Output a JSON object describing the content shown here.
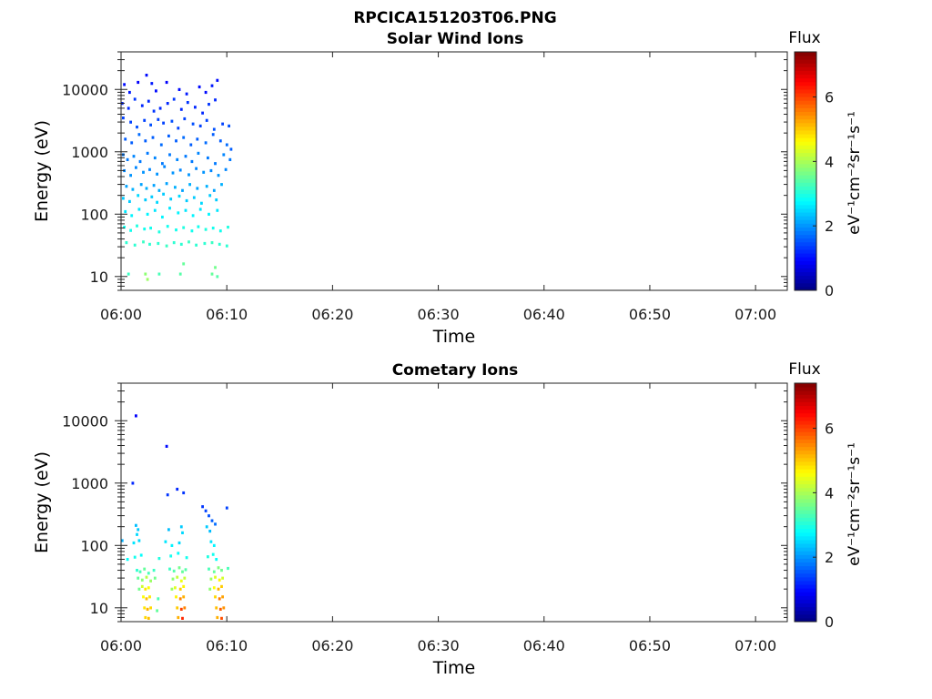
{
  "figure": {
    "title": "RPCICA151203T06.PNG"
  },
  "chart_data": [
    {
      "type": "heatmap",
      "title": "Solar Wind Ions",
      "xlabel": "Time",
      "ylabel": "Energy (eV)",
      "y_scale": "log",
      "x_ticks": [
        "06:00",
        "06:10",
        "06:20",
        "06:30",
        "06:40",
        "06:50",
        "07:00"
      ],
      "x_range_minutes": [
        0,
        63
      ],
      "y_ticks": [
        "10",
        "100",
        "1000",
        "10000"
      ],
      "y_range": [
        6,
        40000
      ],
      "colorbar": {
        "label": "Flux",
        "unit": "eV⁻¹cm⁻²sr⁻¹s⁻¹",
        "ticks": [
          "0",
          "2",
          "4",
          "6"
        ],
        "range": [
          0,
          7.4
        ],
        "colormap": "jet"
      },
      "cells": [
        [
          0.3,
          12000,
          1.0
        ],
        [
          0.8,
          9000,
          1.1
        ],
        [
          1.6,
          13000,
          0.9
        ],
        [
          2.4,
          17000,
          1.0
        ],
        [
          2.9,
          12500,
          1.1
        ],
        [
          3.3,
          9500,
          1.0
        ],
        [
          4.3,
          13000,
          0.9
        ],
        [
          5.5,
          10000,
          1.0
        ],
        [
          6.2,
          8500,
          1.1
        ],
        [
          7.4,
          11000,
          1.0
        ],
        [
          8.0,
          9000,
          1.0
        ],
        [
          8.6,
          11500,
          1.1
        ],
        [
          9.1,
          14000,
          1.0
        ],
        [
          0.1,
          6000,
          1.2
        ],
        [
          0.7,
          5000,
          1.2
        ],
        [
          1.3,
          7000,
          1.3
        ],
        [
          2.0,
          5500,
          1.2
        ],
        [
          2.6,
          6500,
          1.2
        ],
        [
          3.1,
          4500,
          1.3
        ],
        [
          3.7,
          5000,
          1.2
        ],
        [
          4.4,
          6000,
          1.2
        ],
        [
          5.0,
          7000,
          1.3
        ],
        [
          5.7,
          4800,
          1.2
        ],
        [
          6.3,
          6200,
          1.3
        ],
        [
          7.0,
          5200,
          1.2
        ],
        [
          7.7,
          4200,
          1.2
        ],
        [
          8.3,
          5800,
          1.3
        ],
        [
          8.9,
          6800,
          1.2
        ],
        [
          0.2,
          3500,
          1.4
        ],
        [
          0.9,
          3000,
          1.4
        ],
        [
          1.5,
          2500,
          1.5
        ],
        [
          2.2,
          3200,
          1.4
        ],
        [
          2.8,
          2700,
          1.5
        ],
        [
          3.5,
          3300,
          1.4
        ],
        [
          4.0,
          2900,
          1.4
        ],
        [
          4.8,
          3100,
          1.5
        ],
        [
          5.4,
          2400,
          1.4
        ],
        [
          6.0,
          3400,
          1.4
        ],
        [
          6.8,
          2800,
          1.5
        ],
        [
          7.5,
          2600,
          1.4
        ],
        [
          8.1,
          3200,
          1.4
        ],
        [
          8.8,
          2300,
          1.5
        ],
        [
          9.6,
          2800,
          1.4
        ],
        [
          10.2,
          2600,
          1.5
        ],
        [
          0.4,
          1600,
          1.6
        ],
        [
          1.0,
          1400,
          1.6
        ],
        [
          1.7,
          1900,
          1.7
        ],
        [
          2.3,
          1500,
          1.6
        ],
        [
          3.0,
          1700,
          1.6
        ],
        [
          3.8,
          1300,
          1.7
        ],
        [
          4.5,
          1800,
          1.6
        ],
        [
          5.2,
          1500,
          1.6
        ],
        [
          5.9,
          1700,
          1.7
        ],
        [
          6.6,
          1300,
          1.6
        ],
        [
          7.2,
          1600,
          1.6
        ],
        [
          8.0,
          1400,
          1.7
        ],
        [
          8.7,
          1900,
          1.6
        ],
        [
          9.4,
          1500,
          1.6
        ],
        [
          10.0,
          1300,
          1.7
        ],
        [
          10.4,
          1100,
          1.6
        ],
        [
          0.2,
          900,
          1.8
        ],
        [
          0.6,
          750,
          1.8
        ],
        [
          1.2,
          850,
          1.9
        ],
        [
          1.8,
          700,
          1.8
        ],
        [
          2.5,
          950,
          1.8
        ],
        [
          3.2,
          800,
          1.9
        ],
        [
          3.9,
          650,
          1.8
        ],
        [
          4.6,
          900,
          1.8
        ],
        [
          5.3,
          750,
          1.9
        ],
        [
          6.1,
          850,
          1.8
        ],
        [
          6.7,
          700,
          1.8
        ],
        [
          7.3,
          950,
          1.9
        ],
        [
          8.2,
          800,
          1.8
        ],
        [
          8.9,
          650,
          1.8
        ],
        [
          9.7,
          900,
          1.9
        ],
        [
          10.3,
          750,
          1.8
        ],
        [
          0.3,
          500,
          1.9
        ],
        [
          0.9,
          420,
          2.0
        ],
        [
          1.4,
          560,
          1.9
        ],
        [
          2.1,
          470,
          2.0
        ],
        [
          2.7,
          520,
          1.9
        ],
        [
          3.4,
          440,
          2.0
        ],
        [
          4.1,
          580,
          1.9
        ],
        [
          4.9,
          460,
          2.0
        ],
        [
          5.6,
          510,
          1.9
        ],
        [
          6.4,
          430,
          2.0
        ],
        [
          7.1,
          540,
          1.9
        ],
        [
          7.8,
          470,
          2.0
        ],
        [
          8.5,
          500,
          1.9
        ],
        [
          9.2,
          420,
          2.0
        ],
        [
          9.9,
          520,
          1.9
        ],
        [
          0.5,
          280,
          2.1
        ],
        [
          1.1,
          250,
          2.2
        ],
        [
          1.9,
          300,
          2.1
        ],
        [
          2.4,
          260,
          2.2
        ],
        [
          3.1,
          290,
          2.1
        ],
        [
          3.6,
          240,
          2.2
        ],
        [
          4.3,
          310,
          2.1
        ],
        [
          5.1,
          270,
          2.2
        ],
        [
          5.8,
          240,
          2.1
        ],
        [
          6.5,
          300,
          2.2
        ],
        [
          7.2,
          260,
          2.1
        ],
        [
          8.1,
          280,
          2.2
        ],
        [
          8.8,
          240,
          2.1
        ],
        [
          9.5,
          300,
          2.2
        ],
        [
          0.2,
          180,
          2.4
        ],
        [
          0.8,
          160,
          2.4
        ],
        [
          1.6,
          200,
          2.5
        ],
        [
          2.3,
          170,
          2.4
        ],
        [
          2.9,
          190,
          2.4
        ],
        [
          3.4,
          155,
          2.5
        ],
        [
          4.0,
          210,
          2.4
        ],
        [
          4.7,
          175,
          2.4
        ],
        [
          5.5,
          195,
          2.5
        ],
        [
          6.2,
          165,
          2.4
        ],
        [
          6.9,
          185,
          2.4
        ],
        [
          7.6,
          150,
          2.5
        ],
        [
          8.4,
          200,
          2.4
        ],
        [
          9.0,
          170,
          2.4
        ],
        [
          0.4,
          110,
          2.6
        ],
        [
          1.0,
          95,
          2.7
        ],
        [
          1.7,
          120,
          2.6
        ],
        [
          2.5,
          100,
          2.7
        ],
        [
          3.2,
          115,
          2.6
        ],
        [
          3.9,
          90,
          2.7
        ],
        [
          4.6,
          125,
          2.6
        ],
        [
          5.4,
          105,
          2.7
        ],
        [
          6.1,
          115,
          2.6
        ],
        [
          6.8,
          95,
          2.7
        ],
        [
          7.5,
          120,
          2.6
        ],
        [
          8.3,
          100,
          2.7
        ],
        [
          9.1,
          115,
          2.6
        ],
        [
          0.3,
          62,
          2.9
        ],
        [
          0.9,
          55,
          2.9
        ],
        [
          1.5,
          65,
          3.0
        ],
        [
          2.2,
          58,
          2.9
        ],
        [
          2.8,
          60,
          2.9
        ],
        [
          3.6,
          52,
          3.0
        ],
        [
          4.4,
          64,
          2.9
        ],
        [
          5.2,
          56,
          2.9
        ],
        [
          5.9,
          61,
          3.0
        ],
        [
          6.7,
          54,
          2.9
        ],
        [
          7.3,
          63,
          2.9
        ],
        [
          8.0,
          57,
          3.0
        ],
        [
          8.7,
          60,
          2.9
        ],
        [
          9.4,
          54,
          2.9
        ],
        [
          10.1,
          62,
          3.0
        ],
        [
          0.5,
          35,
          3.1
        ],
        [
          1.3,
          32,
          3.1
        ],
        [
          2.1,
          36,
          3.2
        ],
        [
          2.7,
          33,
          3.1
        ],
        [
          3.5,
          34,
          3.1
        ],
        [
          4.3,
          31,
          3.2
        ],
        [
          5.0,
          35,
          3.1
        ],
        [
          5.7,
          33,
          3.1
        ],
        [
          6.4,
          36,
          3.2
        ],
        [
          7.1,
          32,
          3.1
        ],
        [
          7.9,
          34,
          3.1
        ],
        [
          8.6,
          35,
          3.2
        ],
        [
          9.3,
          33,
          3.1
        ],
        [
          10.0,
          31,
          3.1
        ],
        [
          0.7,
          11,
          3.2
        ],
        [
          2.3,
          11,
          3.8
        ],
        [
          2.5,
          9,
          3.9
        ],
        [
          3.6,
          11,
          3.3
        ],
        [
          5.6,
          11,
          3.4
        ],
        [
          5.9,
          16,
          3.5
        ],
        [
          8.6,
          11,
          3.5
        ],
        [
          8.9,
          14,
          3.6
        ],
        [
          9.1,
          10,
          3.4
        ]
      ]
    },
    {
      "type": "heatmap",
      "title": "Cometary Ions",
      "xlabel": "Time",
      "ylabel": "Energy (eV)",
      "y_scale": "log",
      "x_ticks": [
        "06:00",
        "06:10",
        "06:20",
        "06:30",
        "06:40",
        "06:50",
        "07:00"
      ],
      "x_range_minutes": [
        0,
        63
      ],
      "y_ticks": [
        "10",
        "100",
        "1000",
        "10000"
      ],
      "y_range": [
        6,
        40000
      ],
      "colorbar": {
        "label": "Flux",
        "unit": "eV⁻¹cm⁻²sr⁻¹s⁻¹",
        "ticks": [
          "0",
          "2",
          "4",
          "6"
        ],
        "range": [
          0,
          7.4
        ],
        "colormap": "jet"
      },
      "cells": [
        [
          1.4,
          12000,
          0.9
        ],
        [
          4.3,
          3900,
          1.0
        ],
        [
          1.1,
          1000,
          1.2
        ],
        [
          4.4,
          650,
          1.3
        ],
        [
          5.3,
          800,
          1.2
        ],
        [
          5.9,
          700,
          1.3
        ],
        [
          10.0,
          400,
          1.4
        ],
        [
          7.7,
          420,
          1.3
        ],
        [
          8.0,
          360,
          1.4
        ],
        [
          8.3,
          300,
          1.5
        ],
        [
          8.6,
          250,
          1.6
        ],
        [
          8.9,
          220,
          1.7
        ],
        [
          1.4,
          210,
          2.3
        ],
        [
          1.6,
          180,
          2.4
        ],
        [
          1.5,
          150,
          2.5
        ],
        [
          4.5,
          180,
          2.3
        ],
        [
          5.7,
          200,
          2.4
        ],
        [
          5.8,
          160,
          2.5
        ],
        [
          8.1,
          200,
          2.4
        ],
        [
          8.4,
          170,
          2.3
        ],
        [
          0.1,
          120,
          2.2
        ],
        [
          1.2,
          110,
          2.6
        ],
        [
          1.7,
          120,
          2.5
        ],
        [
          4.2,
          115,
          2.6
        ],
        [
          4.8,
          100,
          2.7
        ],
        [
          5.5,
          110,
          2.5
        ],
        [
          8.5,
          115,
          2.6
        ],
        [
          8.8,
          100,
          2.7
        ],
        [
          0.6,
          60,
          2.8
        ],
        [
          1.3,
          65,
          2.9
        ],
        [
          1.9,
          70,
          2.8
        ],
        [
          3.6,
          62,
          3.0
        ],
        [
          4.7,
          68,
          2.9
        ],
        [
          5.4,
          75,
          2.8
        ],
        [
          6.2,
          64,
          2.9
        ],
        [
          8.2,
          66,
          3.0
        ],
        [
          8.7,
          72,
          2.9
        ],
        [
          9.0,
          60,
          2.8
        ],
        [
          1.5,
          40,
          3.1
        ],
        [
          1.8,
          38,
          3.3
        ],
        [
          2.2,
          42,
          3.5
        ],
        [
          2.6,
          36,
          3.3
        ],
        [
          3.1,
          40,
          3.2
        ],
        [
          4.6,
          42,
          3.2
        ],
        [
          5.0,
          39,
          3.4
        ],
        [
          5.5,
          44,
          3.6
        ],
        [
          5.8,
          38,
          3.5
        ],
        [
          6.1,
          41,
          3.4
        ],
        [
          8.3,
          42,
          3.3
        ],
        [
          8.8,
          38,
          3.5
        ],
        [
          9.2,
          44,
          3.7
        ],
        [
          9.5,
          40,
          3.6
        ],
        [
          10.1,
          43,
          3.3
        ],
        [
          1.6,
          30,
          3.5
        ],
        [
          2.0,
          28,
          3.8
        ],
        [
          2.4,
          31,
          4.1
        ],
        [
          2.8,
          27,
          3.9
        ],
        [
          3.2,
          30,
          3.6
        ],
        [
          4.9,
          29,
          3.8
        ],
        [
          5.3,
          31,
          4.2
        ],
        [
          5.7,
          27,
          4.5
        ],
        [
          6.0,
          30,
          4.2
        ],
        [
          8.5,
          29,
          3.9
        ],
        [
          8.9,
          31,
          4.4
        ],
        [
          9.3,
          28,
          4.7
        ],
        [
          9.6,
          30,
          4.3
        ],
        [
          2.0,
          22,
          4.3
        ],
        [
          2.3,
          20,
          4.8
        ],
        [
          2.6,
          21,
          4.6
        ],
        [
          5.1,
          21,
          4.4
        ],
        [
          5.6,
          20,
          5.0
        ],
        [
          5.9,
          22,
          4.7
        ],
        [
          8.8,
          21,
          4.6
        ],
        [
          9.2,
          20,
          5.2
        ],
        [
          9.5,
          22,
          5.0
        ],
        [
          1.7,
          20,
          3.6
        ],
        [
          4.8,
          20,
          3.9
        ],
        [
          8.4,
          20,
          3.8
        ],
        [
          2.1,
          15,
          4.6
        ],
        [
          2.4,
          14,
          5.1
        ],
        [
          2.7,
          15,
          4.8
        ],
        [
          5.2,
          15,
          4.7
        ],
        [
          5.6,
          14,
          5.5
        ],
        [
          5.9,
          15,
          5.2
        ],
        [
          8.9,
          15,
          4.9
        ],
        [
          9.3,
          14,
          5.6
        ],
        [
          9.6,
          15,
          5.3
        ],
        [
          3.5,
          14,
          3.3
        ],
        [
          2.2,
          10,
          4.8
        ],
        [
          2.5,
          9.5,
          5.2
        ],
        [
          2.8,
          10,
          4.9
        ],
        [
          5.3,
          10,
          5.0
        ],
        [
          5.7,
          9.5,
          6.0
        ],
        [
          6.0,
          10,
          5.5
        ],
        [
          9.0,
          10,
          5.1
        ],
        [
          9.4,
          9.5,
          5.8
        ],
        [
          9.7,
          10,
          5.4
        ],
        [
          3.4,
          9,
          3.5
        ],
        [
          2.3,
          7,
          4.9
        ],
        [
          2.6,
          6.8,
          5.1
        ],
        [
          5.4,
          7,
          5.2
        ],
        [
          5.8,
          6.8,
          6.2
        ],
        [
          9.1,
          7,
          5.2
        ],
        [
          9.5,
          6.8,
          5.9
        ]
      ]
    }
  ]
}
